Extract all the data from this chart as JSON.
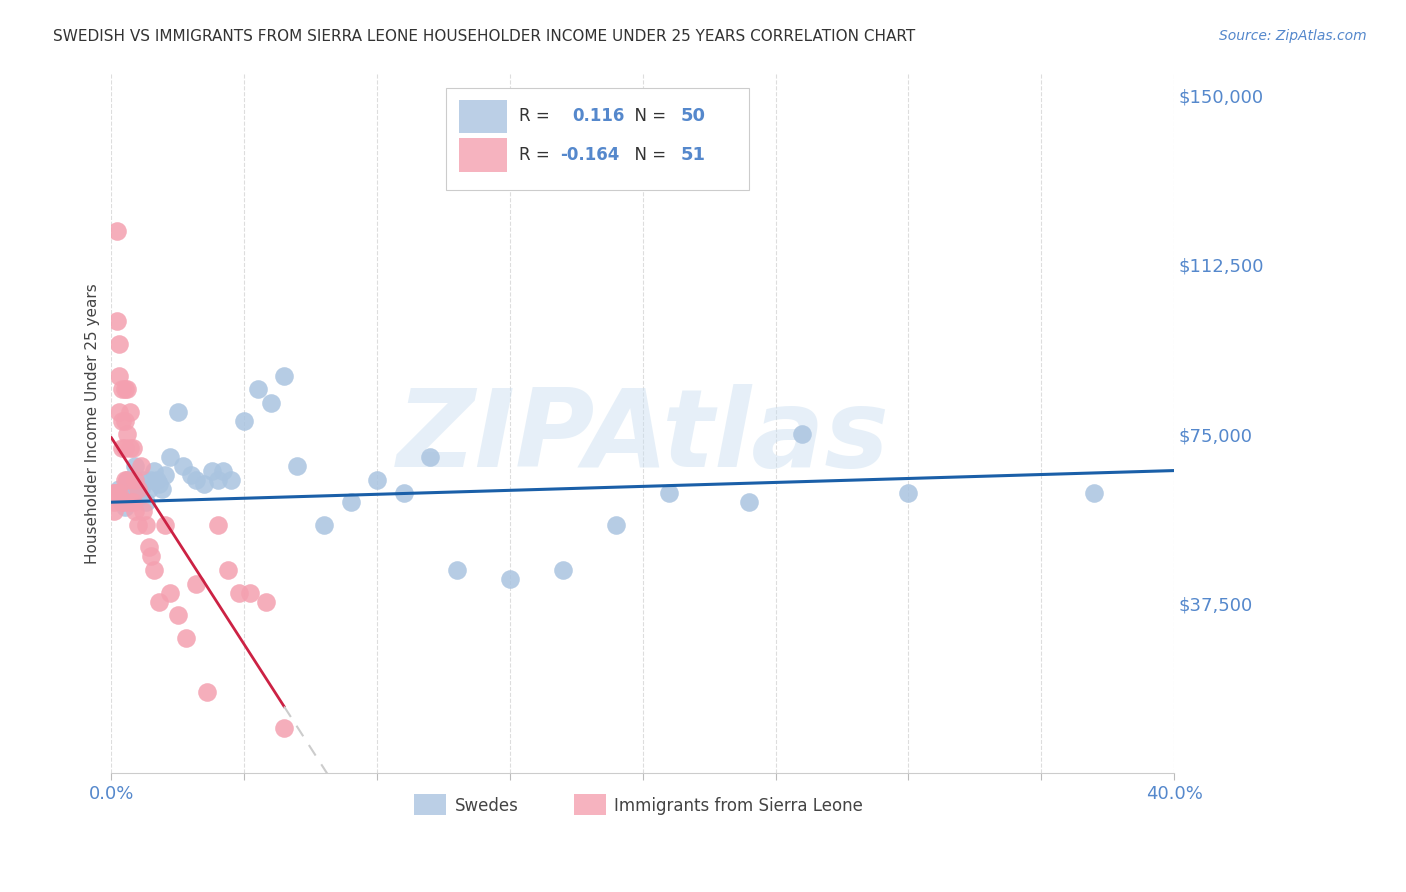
{
  "title": "SWEDISH VS IMMIGRANTS FROM SIERRA LEONE HOUSEHOLDER INCOME UNDER 25 YEARS CORRELATION CHART",
  "source": "Source: ZipAtlas.com",
  "ylabel": "Householder Income Under 25 years",
  "ytick_values": [
    0,
    37500,
    75000,
    112500,
    150000
  ],
  "ytick_labels": [
    "",
    "$37,500",
    "$75,000",
    "$112,500",
    "$150,000"
  ],
  "xtick_values": [
    0.0,
    0.05,
    0.1,
    0.15,
    0.2,
    0.25,
    0.3,
    0.35,
    0.4
  ],
  "xtick_labels": [
    "0.0%",
    "",
    "",
    "",
    "",
    "",
    "",
    "",
    "40.0%"
  ],
  "xmin": 0.0,
  "xmax": 0.4,
  "ymin": 0,
  "ymax": 155000,
  "r_swedes": 0.116,
  "n_swedes": 50,
  "r_sierra": -0.164,
  "n_sierra": 51,
  "legend_label_swedes": "Swedes",
  "legend_label_sierra": "Immigrants from Sierra Leone",
  "watermark": "ZIPAtlas",
  "blue_color": "#aac4e0",
  "pink_color": "#f4a0b0",
  "trend_blue": "#1a5fa8",
  "trend_pink": "#cc2244",
  "trend_dashed_color": "#cccccc",
  "axis_label_color": "#5588cc",
  "grid_color": "#dddddd",
  "title_color": "#333333",
  "source_color": "#5588cc",
  "swedes_x": [
    0.003,
    0.004,
    0.005,
    0.005,
    0.006,
    0.006,
    0.007,
    0.008,
    0.008,
    0.009,
    0.01,
    0.011,
    0.012,
    0.013,
    0.014,
    0.015,
    0.016,
    0.017,
    0.018,
    0.019,
    0.02,
    0.022,
    0.025,
    0.027,
    0.03,
    0.032,
    0.035,
    0.038,
    0.04,
    0.042,
    0.045,
    0.05,
    0.055,
    0.06,
    0.065,
    0.07,
    0.08,
    0.09,
    0.1,
    0.11,
    0.12,
    0.13,
    0.15,
    0.17,
    0.19,
    0.21,
    0.24,
    0.26,
    0.3,
    0.37
  ],
  "swedes_y": [
    63000,
    60000,
    62000,
    59000,
    65000,
    61000,
    63000,
    62000,
    64000,
    68000,
    61000,
    63000,
    65000,
    60000,
    63000,
    65000,
    67000,
    65000,
    64000,
    63000,
    66000,
    70000,
    80000,
    68000,
    66000,
    65000,
    64000,
    67000,
    65000,
    67000,
    65000,
    78000,
    85000,
    82000,
    88000,
    68000,
    55000,
    60000,
    65000,
    62000,
    70000,
    45000,
    43000,
    45000,
    55000,
    62000,
    60000,
    75000,
    62000,
    62000
  ],
  "sierra_x": [
    0.001,
    0.001,
    0.001,
    0.002,
    0.002,
    0.002,
    0.003,
    0.003,
    0.003,
    0.003,
    0.004,
    0.004,
    0.004,
    0.004,
    0.005,
    0.005,
    0.005,
    0.005,
    0.005,
    0.006,
    0.006,
    0.006,
    0.007,
    0.007,
    0.007,
    0.008,
    0.008,
    0.009,
    0.009,
    0.01,
    0.01,
    0.011,
    0.012,
    0.013,
    0.014,
    0.015,
    0.016,
    0.018,
    0.02,
    0.022,
    0.025,
    0.028,
    0.032,
    0.036,
    0.04,
    0.044,
    0.048,
    0.052,
    0.058,
    0.065,
    0.001
  ],
  "sierra_y": [
    62000,
    58000,
    60000,
    120000,
    100000,
    62000,
    95000,
    88000,
    80000,
    62000,
    85000,
    78000,
    72000,
    60000,
    85000,
    78000,
    72000,
    65000,
    60000,
    85000,
    75000,
    65000,
    80000,
    72000,
    60000,
    72000,
    60000,
    65000,
    58000,
    63000,
    55000,
    68000,
    58000,
    55000,
    50000,
    48000,
    45000,
    38000,
    55000,
    40000,
    35000,
    30000,
    42000,
    18000,
    55000,
    45000,
    40000,
    40000,
    38000,
    10000,
    62000
  ]
}
